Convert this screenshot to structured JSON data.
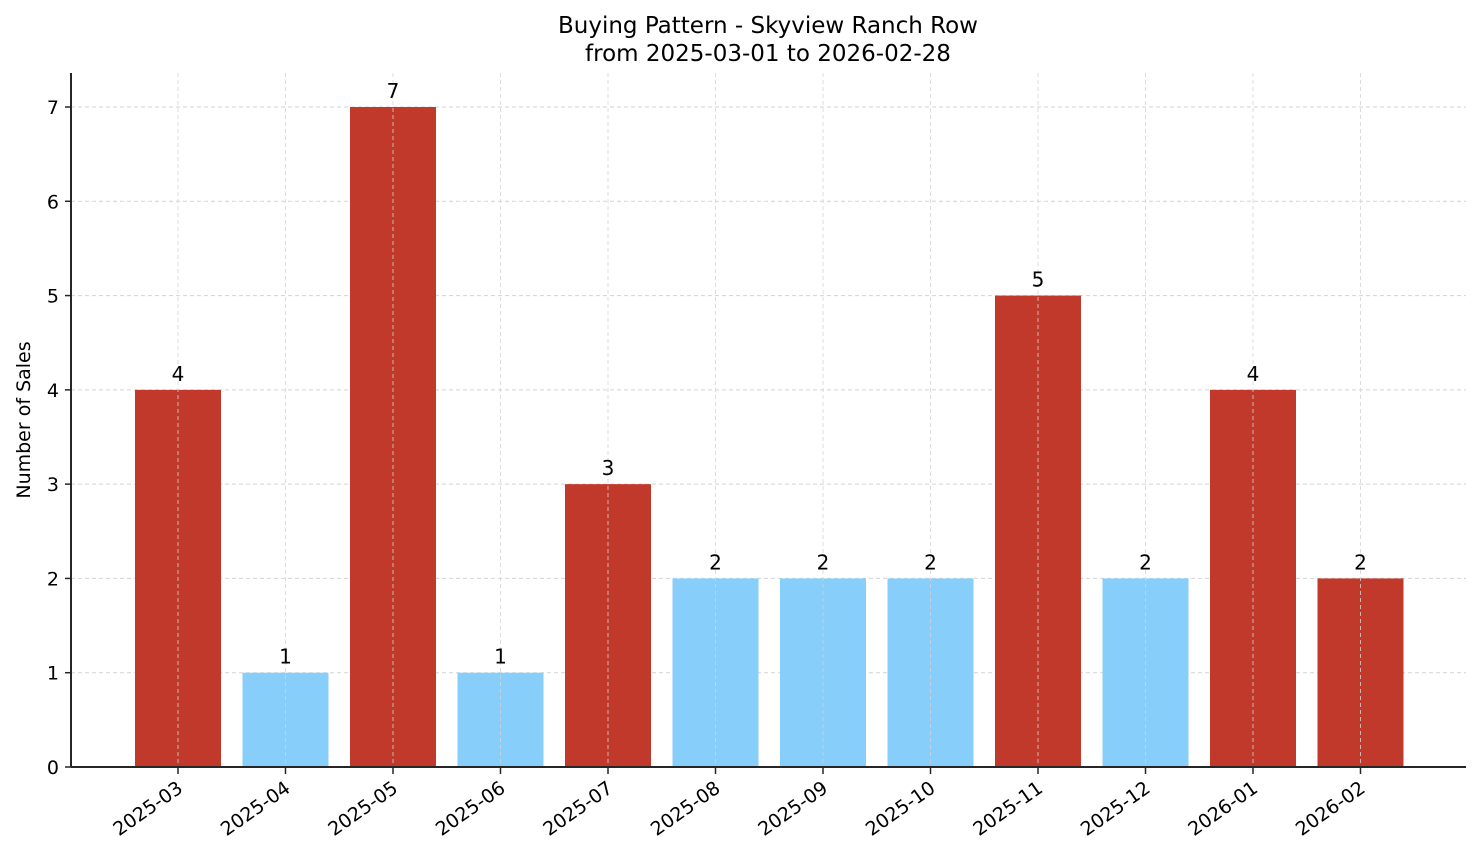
{
  "chart_data": {
    "type": "bar",
    "title": "Buying Pattern - Skyview Ranch Row",
    "subtitle": "from 2025-03-01 to 2026-02-28",
    "xlabel": "",
    "ylabel": "Number of Sales",
    "ylim": [
      0,
      7.35
    ],
    "yticks": [
      0,
      1,
      2,
      3,
      4,
      5,
      6,
      7
    ],
    "grid": true,
    "legend": null,
    "categories": [
      "2025-03",
      "2025-04",
      "2025-05",
      "2025-06",
      "2025-07",
      "2025-08",
      "2025-09",
      "2025-10",
      "2025-11",
      "2025-12",
      "2026-01",
      "2026-02"
    ],
    "values": [
      4,
      1,
      7,
      1,
      3,
      2,
      2,
      2,
      5,
      2,
      4,
      2
    ],
    "bar_colors": [
      "#c0392b",
      "#87cefa",
      "#c0392b",
      "#87cefa",
      "#c0392b",
      "#87cefa",
      "#87cefa",
      "#87cefa",
      "#c0392b",
      "#87cefa",
      "#c0392b",
      "#c0392b"
    ],
    "data_labels": [
      "4",
      "1",
      "7",
      "1",
      "3",
      "2",
      "2",
      "2",
      "5",
      "2",
      "4",
      "2"
    ]
  },
  "colors": {
    "high": "#c0392b",
    "low": "#87cefa",
    "grid": "#d3d3d3",
    "axis": "#262626"
  }
}
